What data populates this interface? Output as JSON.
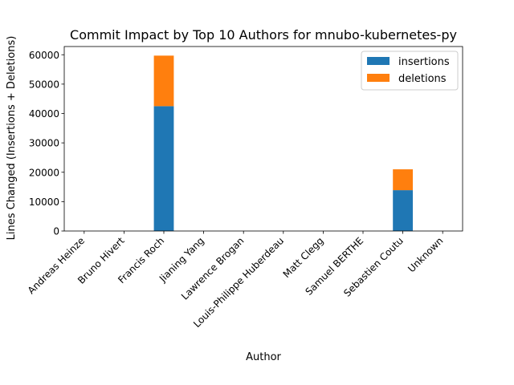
{
  "chart_data": {
    "type": "bar",
    "stacked": true,
    "title": "Commit Impact by Top 10 Authors for mnubo-kubernetes-py",
    "xlabel": "Author",
    "ylabel": "Lines Changed (Insertions + Deletions)",
    "categories": [
      "Andreas Heinze",
      "Bruno Hivert",
      "Francis Roch",
      "Jianing Yang",
      "Lawrence Brogan",
      "Louis-Philippe Huberdeau",
      "Matt Clegg",
      "Samuel BERTHE",
      "Sebastien Coutu",
      "Unknown"
    ],
    "series": [
      {
        "name": "insertions",
        "color": "#1f77b4",
        "values": [
          0,
          0,
          42500,
          0,
          0,
          0,
          0,
          0,
          13900,
          0
        ]
      },
      {
        "name": "deletions",
        "color": "#ff7f0e",
        "values": [
          0,
          0,
          17200,
          0,
          0,
          0,
          0,
          0,
          7100,
          0
        ]
      }
    ],
    "ylim": [
      0,
      62800
    ],
    "yticks": [
      "0",
      "10000",
      "20000",
      "30000",
      "40000",
      "50000",
      "60000"
    ],
    "legend_position": "top-right",
    "grid": false
  }
}
